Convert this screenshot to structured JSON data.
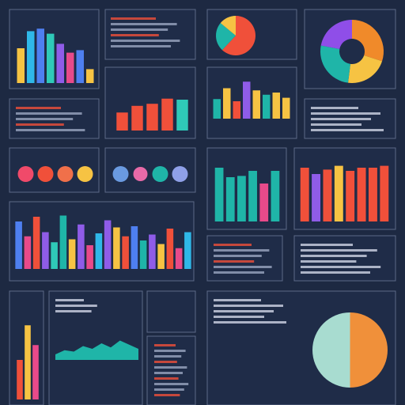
{
  "chart_data": [
    {
      "type": "bar",
      "values": [
        55,
        82,
        86,
        78,
        62,
        48,
        52,
        22
      ],
      "colors": [
        "#f6c343",
        "#2fb8e8",
        "#4e7ff0",
        "#2fc9b8",
        "#8f5ce8",
        "#e84a8a",
        "#4e7ff0",
        "#f6c343"
      ],
      "ylim": [
        0,
        100
      ]
    },
    {
      "type": "pie",
      "values": [
        62,
        24,
        14
      ],
      "colors": [
        "#f0503a",
        "#1fb5a8",
        "#f6c343"
      ]
    },
    {
      "type": "donut",
      "values": [
        30,
        22,
        26,
        22
      ],
      "colors": [
        "#f08a2a",
        "#f6c343",
        "#1fb5a8",
        "#8f4ee8"
      ]
    },
    {
      "type": "bar",
      "values": [
        35,
        48,
        52,
        62,
        60
      ],
      "colors": [
        "#f0503a",
        "#f0503a",
        "#f0503a",
        "#f0503a",
        "#2fc9b8"
      ],
      "ylim": [
        0,
        100
      ]
    },
    {
      "type": "bar",
      "values": [
        45,
        70,
        40,
        85,
        65,
        55,
        60,
        48
      ],
      "colors": [
        "#1fb5a8",
        "#f6c343",
        "#f0503a",
        "#8f5ce8",
        "#f6c343",
        "#1fb5a8",
        "#f6c343",
        "#f6c343"
      ],
      "ylim": [
        0,
        100
      ]
    },
    {
      "type": "bubble",
      "values": [
        10,
        10,
        10,
        10
      ],
      "colors": [
        "#f04a6a",
        "#f0503a",
        "#f0704a",
        "#f6c343"
      ]
    },
    {
      "type": "bubble",
      "values": [
        10,
        9,
        10,
        10
      ],
      "colors": [
        "#6a9ae0",
        "#e86aa8",
        "#1fb5a8",
        "#8fa0e8"
      ]
    },
    {
      "type": "bar",
      "values": [
        85,
        70,
        72,
        80,
        60,
        80
      ],
      "colors": [
        "#1fb5a8",
        "#1fb5a8",
        "#1fb5a8",
        "#1fb5a8",
        "#e84a8a",
        "#1fb5a8"
      ],
      "ylim": [
        0,
        100
      ]
    },
    {
      "type": "bar",
      "values": [
        85,
        75,
        82,
        88,
        80,
        85,
        85,
        88
      ],
      "colors": [
        "#f0503a",
        "#8f5ce8",
        "#f0503a",
        "#f6c343",
        "#f0503a",
        "#f0503a",
        "#f0503a",
        "#f0503a"
      ],
      "ylim": [
        0,
        100
      ]
    },
    {
      "type": "bar",
      "values": [
        80,
        55,
        88,
        62,
        45,
        90,
        50,
        75,
        40,
        60,
        82,
        70,
        55,
        72,
        48,
        58,
        42,
        68,
        35,
        62
      ],
      "colors": [
        "#4e7ff0",
        "#e84a8a",
        "#f0503a",
        "#8f5ce8",
        "#2fc9b8",
        "#1fb5a8",
        "#f6c343",
        "#8f5ce8",
        "#e84a8a",
        "#2fb8e8",
        "#8f5ce8",
        "#f6c343",
        "#f0503a",
        "#4e7ff0",
        "#1fb5a8",
        "#8f5ce8",
        "#f6c343",
        "#f0503a",
        "#e84a8a",
        "#2fb8e8"
      ],
      "ylim": [
        0,
        100
      ]
    },
    {
      "type": "bar",
      "values": [
        40,
        75,
        55
      ],
      "colors": [
        "#f0503a",
        "#f6c343",
        "#e84a8a"
      ],
      "ylim": [
        0,
        100
      ]
    },
    {
      "type": "area",
      "values": [
        20,
        35,
        30,
        50,
        40,
        60,
        45,
        70,
        55,
        40
      ],
      "color": "#1fb5a8",
      "ylim": [
        0,
        100
      ]
    },
    {
      "type": "pie",
      "values": [
        50,
        50
      ],
      "colors": [
        "#f0903a",
        "#a8dcd0"
      ]
    }
  ]
}
